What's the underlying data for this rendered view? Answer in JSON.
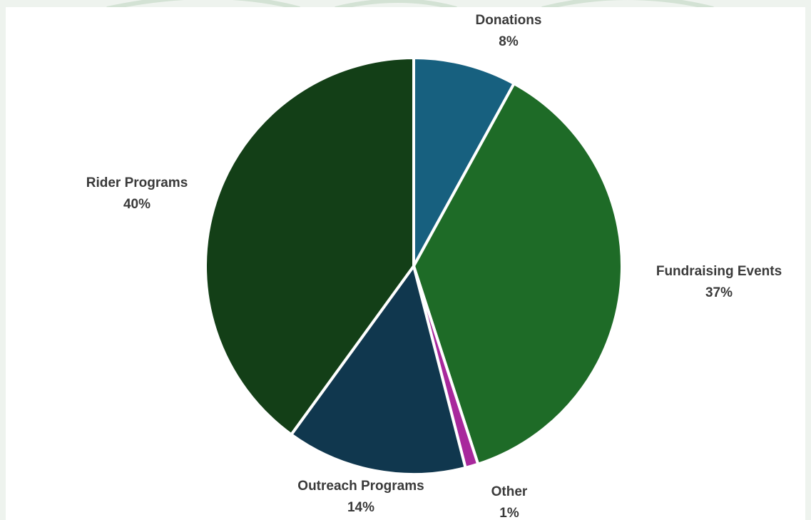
{
  "chart_data": {
    "type": "pie",
    "title": "",
    "start_angle_deg": 0,
    "direction": "clockwise",
    "slices": [
      {
        "label": "Donations",
        "value": 8,
        "value_label": "8%",
        "color": "#17607f"
      },
      {
        "label": "Fundraising Events",
        "value": 37,
        "value_label": "37%",
        "color": "#1e6b27"
      },
      {
        "label": "Other",
        "value": 1,
        "value_label": "1%",
        "color": "#a8289c"
      },
      {
        "label": "Outreach Programs",
        "value": 14,
        "value_label": "14%",
        "color": "#10374e"
      },
      {
        "label": "Rider Programs",
        "value": 40,
        "value_label": "40%",
        "color": "#133f17"
      }
    ],
    "legend": "none",
    "data_labels": "outside"
  },
  "background": {
    "panel_color": "#ffffff",
    "backdrop_color": "#eef3ee",
    "watermark_color": "#d9e6da"
  }
}
